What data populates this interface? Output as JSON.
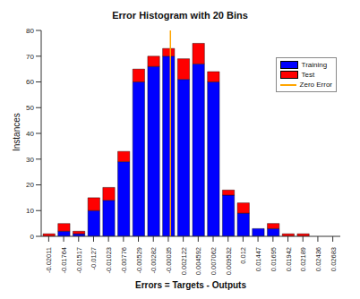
{
  "chart_data": {
    "type": "bar",
    "title": "Error Histogram with 20 Bins",
    "x_label": "Errors = Targets - Outputs",
    "y_label": "Instances",
    "x": [
      -0.02011,
      -0.01764,
      -0.01517,
      -0.0127,
      -0.01023,
      -0.00776,
      -0.00529,
      -0.00282,
      -0.00035,
      0.002122,
      0.004592,
      0.007062,
      0.009532,
      0.012,
      0.01447,
      0.01695,
      0.01942,
      0.02189,
      0.02436,
      0.02683
    ],
    "series": [
      {
        "name": "Training",
        "color": "#0000ff",
        "values": [
          0,
          2,
          1,
          10,
          14,
          29,
          60,
          66,
          70,
          61,
          67,
          60,
          16,
          9,
          3,
          3,
          0,
          0,
          0,
          0
        ]
      },
      {
        "name": "Test",
        "color": "#ff0000",
        "values": [
          1,
          3,
          1,
          5,
          5,
          4,
          5,
          4,
          3,
          8,
          8,
          4,
          2,
          4,
          0,
          2,
          1,
          1,
          0,
          0
        ]
      }
    ],
    "reference_line": {
      "name": "Zero Error",
      "x": 0,
      "color": "#ffa500"
    },
    "stacked": true,
    "legend": "top-right",
    "grid": false,
    "xlim": [
      -0.02135,
      0.02807
    ],
    "xticks": [
      -0.02011,
      -0.01764,
      -0.01517,
      -0.0127,
      -0.01023,
      -0.00776,
      -0.00529,
      -0.00282,
      -0.00035,
      0.002122,
      0.004592,
      0.007062,
      0.009532,
      0.012,
      0.01447,
      0.01695,
      0.01942,
      0.02189,
      0.02436,
      0.02683
    ],
    "ylim": [
      0,
      80
    ],
    "yticks": [
      0,
      10,
      20,
      30,
      40,
      50,
      60,
      70,
      80
    ]
  }
}
